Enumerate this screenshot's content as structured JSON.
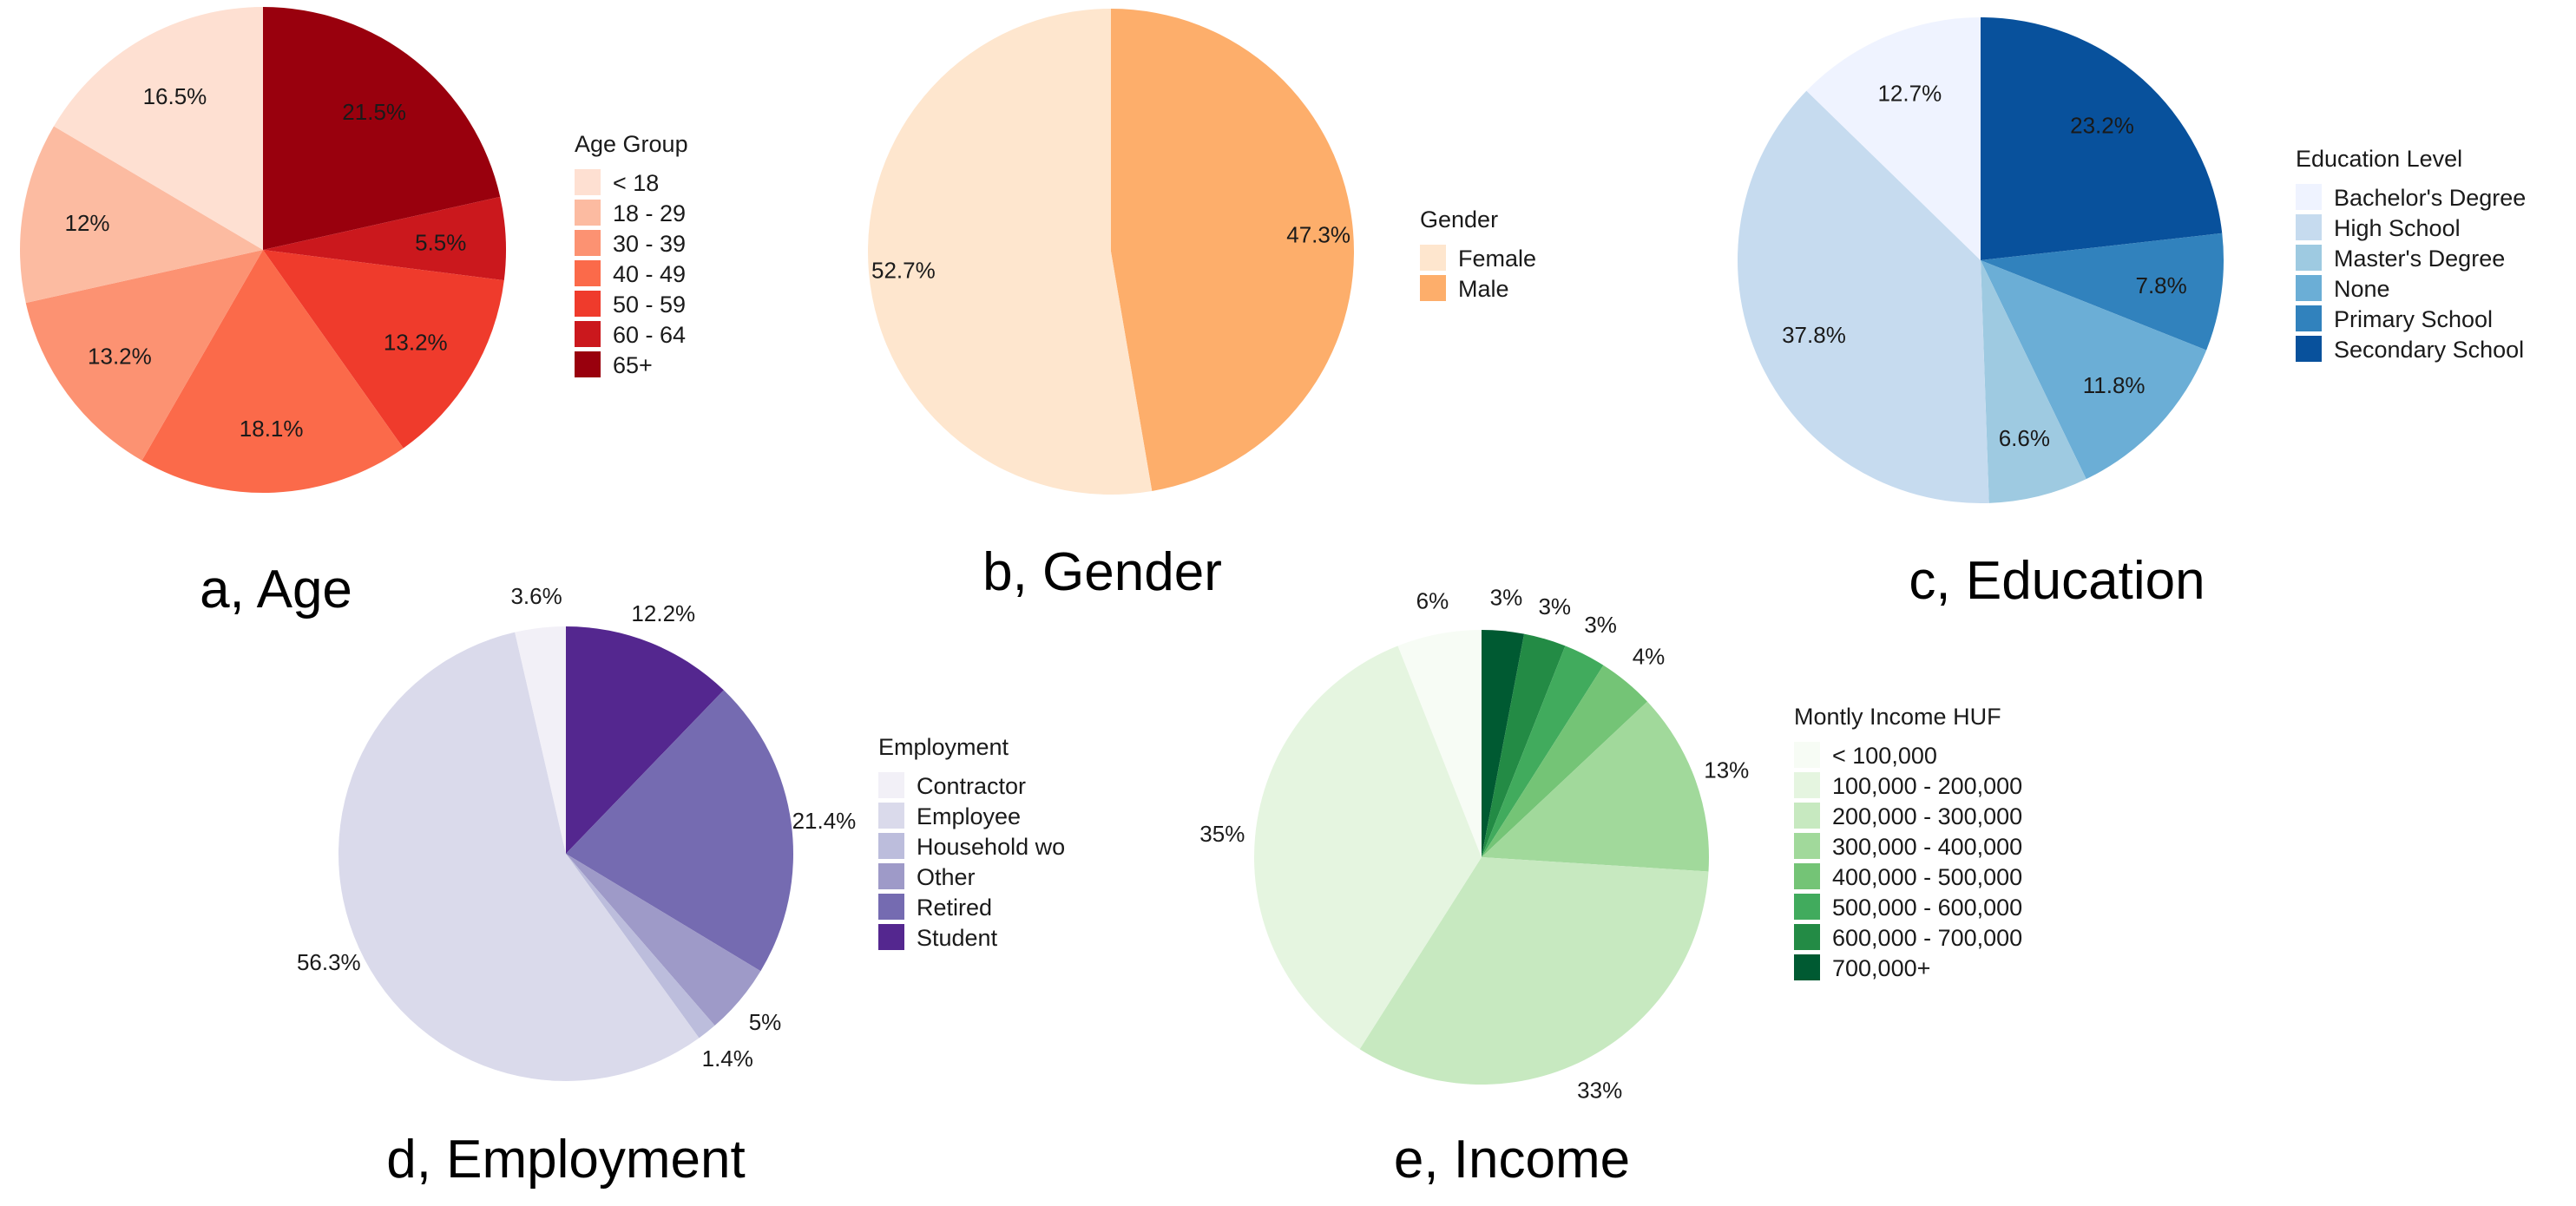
{
  "chart_data": [
    {
      "type": "pie",
      "caption": "a, Age",
      "legend_title": "Age Group",
      "categories": [
        "< 18",
        "18 - 29",
        "30 - 39",
        "40 - 49",
        "50 - 59",
        "60 - 64",
        "65+"
      ],
      "values": [
        16.5,
        12,
        13.2,
        18.1,
        13.2,
        5.5,
        21.5
      ],
      "labels": [
        "16.5%",
        "12%",
        "13.2%",
        "18.1%",
        "13.2%",
        "5.5%",
        "21.5%"
      ],
      "colors": [
        "#FEE0D2",
        "#FCBBA1",
        "#FC9272",
        "#FB6A4A",
        "#EF3B2C",
        "#CB181D",
        "#99000D"
      ]
    },
    {
      "type": "pie",
      "caption": "b, Gender",
      "legend_title": "Gender",
      "categories": [
        "Female",
        "Male"
      ],
      "values": [
        52.7,
        47.3
      ],
      "labels": [
        "52.7%",
        "47.3%"
      ],
      "colors": [
        "#FEE6CE",
        "#FDAE6B"
      ]
    },
    {
      "type": "pie",
      "caption": "c, Education",
      "legend_title": "Education Level",
      "categories": [
        "Bachelor's Degree",
        "High School",
        "Master's Degree",
        "None",
        "Primary School",
        "Secondary School"
      ],
      "values": [
        12.7,
        37.8,
        6.6,
        11.8,
        7.8,
        23.2
      ],
      "labels": [
        "12.7%",
        "37.8%",
        "6.6%",
        "11.8%",
        "7.8%",
        "23.2%"
      ],
      "colors": [
        "#EFF3FF",
        "#C6DBEF",
        "#9ECAE1",
        "#6BAED6",
        "#3182BD",
        "#08519C"
      ]
    },
    {
      "type": "pie",
      "caption": "d, Employment",
      "legend_title": "Employment",
      "categories": [
        "Contractor",
        "Employee",
        "Household wo",
        "Other",
        "Retired",
        "Student"
      ],
      "values": [
        3.6,
        56.3,
        1.4,
        5,
        21.4,
        12.2
      ],
      "labels": [
        "3.6%",
        "56.3%",
        "1.4%",
        "5%",
        "21.4%",
        "12.2%"
      ],
      "colors": [
        "#F2F0F7",
        "#DADAEB",
        "#BCBDDC",
        "#9E9AC8",
        "#756BB1",
        "#54278F"
      ]
    },
    {
      "type": "pie",
      "caption": "e, Income",
      "legend_title": "Montly Income HUF",
      "categories": [
        "< 100,000",
        "100,000 - 200,000",
        "200,000 - 300,000",
        "300,000 - 400,000",
        "400,000 - 500,000",
        "500,000 - 600,000",
        "600,000 - 700,000",
        "700,000+"
      ],
      "values": [
        6,
        35,
        33,
        13,
        4,
        3,
        3,
        3
      ],
      "labels": [
        "6%",
        "35%",
        "33%",
        "13%",
        "4%",
        "3%",
        "3%",
        "3%"
      ],
      "colors": [
        "#F7FCF5",
        "#E5F5E0",
        "#C7E9C0",
        "#A1D99B",
        "#74C476",
        "#41AB5D",
        "#238B45",
        "#005A32"
      ]
    }
  ]
}
